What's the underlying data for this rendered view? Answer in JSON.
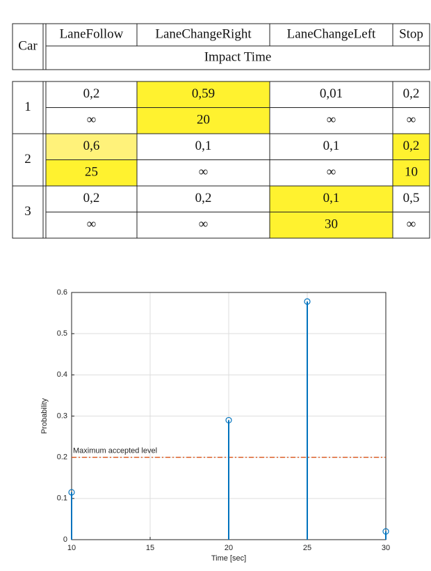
{
  "table": {
    "header": [
      "Car",
      "LaneFollow",
      "LaneChangeRight",
      "LaneChangeLeft",
      "Stop"
    ],
    "subheader": "Impact Time",
    "rows": [
      {
        "car": "1",
        "probability": [
          "0,2",
          "0,59",
          "0,01",
          "0,2"
        ],
        "impact_time": [
          "∞",
          "20",
          "∞",
          "∞"
        ]
      },
      {
        "car": "2",
        "probability": [
          "0,6",
          "0,1",
          "0,1",
          "0,2"
        ],
        "impact_time": [
          "25",
          "∞",
          "∞",
          "10"
        ]
      },
      {
        "car": "3",
        "probability": [
          "0,2",
          "0,2",
          "0,1",
          "0,5"
        ],
        "impact_time": [
          "∞",
          "∞",
          "30",
          "∞"
        ]
      }
    ]
  },
  "chart_data": {
    "type": "stem",
    "x_label": "Time [sec]",
    "y_label": "Probability",
    "x": [
      10,
      20,
      25,
      30
    ],
    "values": [
      0.115,
      0.29,
      0.578,
      0.02
    ],
    "color": "#0072bd",
    "xlim": [
      10,
      30
    ],
    "xticks": [
      10,
      15,
      20,
      25,
      30
    ],
    "ylim": [
      0,
      0.6
    ],
    "yticks": [
      0,
      0.1,
      0.2,
      0.3,
      0.4,
      0.5,
      0.6
    ],
    "grid": true,
    "threshold": {
      "value": 0.2,
      "label": "Maximum accepted level",
      "color": "#d95319"
    }
  }
}
